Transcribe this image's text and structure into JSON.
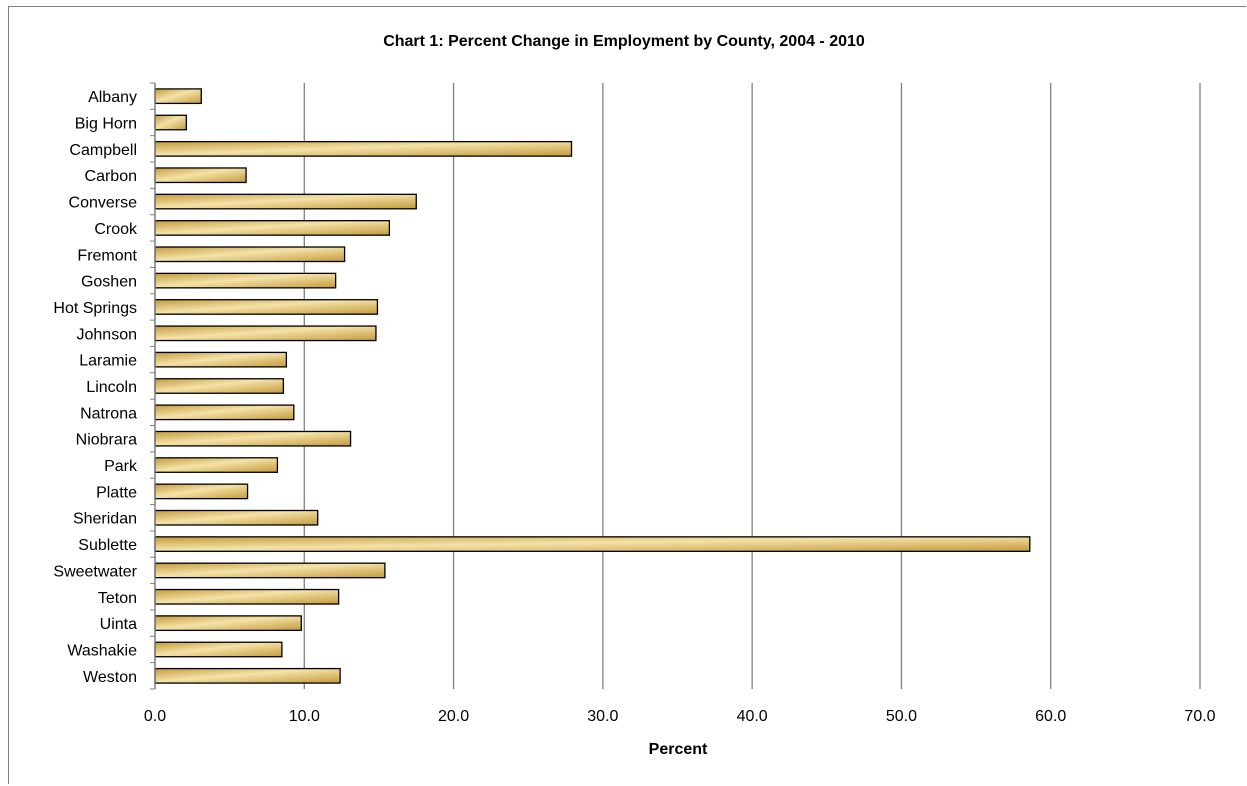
{
  "chart_data": {
    "type": "bar",
    "orientation": "horizontal",
    "title": "Chart 1: Percent Change in Employment by County, 2004 - 2010",
    "xlabel": "Percent",
    "ylabel": "",
    "xlim": [
      0,
      70
    ],
    "tick_labels": [
      "0.0",
      "10.0",
      "20.0",
      "30.0",
      "40.0",
      "50.0",
      "60.0",
      "70.0"
    ],
    "categories": [
      "Albany",
      "Big Horn",
      "Campbell",
      "Carbon",
      "Converse",
      "Crook",
      "Fremont",
      "Goshen",
      "Hot Springs",
      "Johnson",
      "Laramie",
      "Lincoln",
      "Natrona",
      "Niobrara",
      "Park",
      "Platte",
      "Sheridan",
      "Sublette",
      "Sweetwater",
      "Teton",
      "Uinta",
      "Washakie",
      "Weston"
    ],
    "values": [
      3.1,
      2.1,
      27.9,
      6.1,
      17.5,
      15.7,
      12.7,
      12.1,
      14.9,
      14.8,
      8.8,
      8.6,
      9.3,
      13.1,
      8.2,
      6.2,
      10.9,
      58.6,
      15.4,
      12.3,
      9.8,
      8.5,
      12.4
    ],
    "grid": true,
    "legend": "none",
    "colors": {
      "bar_light": "#f3e1a6",
      "bar_dark": "#c49a3c",
      "bar_edge": "#000000",
      "grid": "#808080"
    }
  }
}
